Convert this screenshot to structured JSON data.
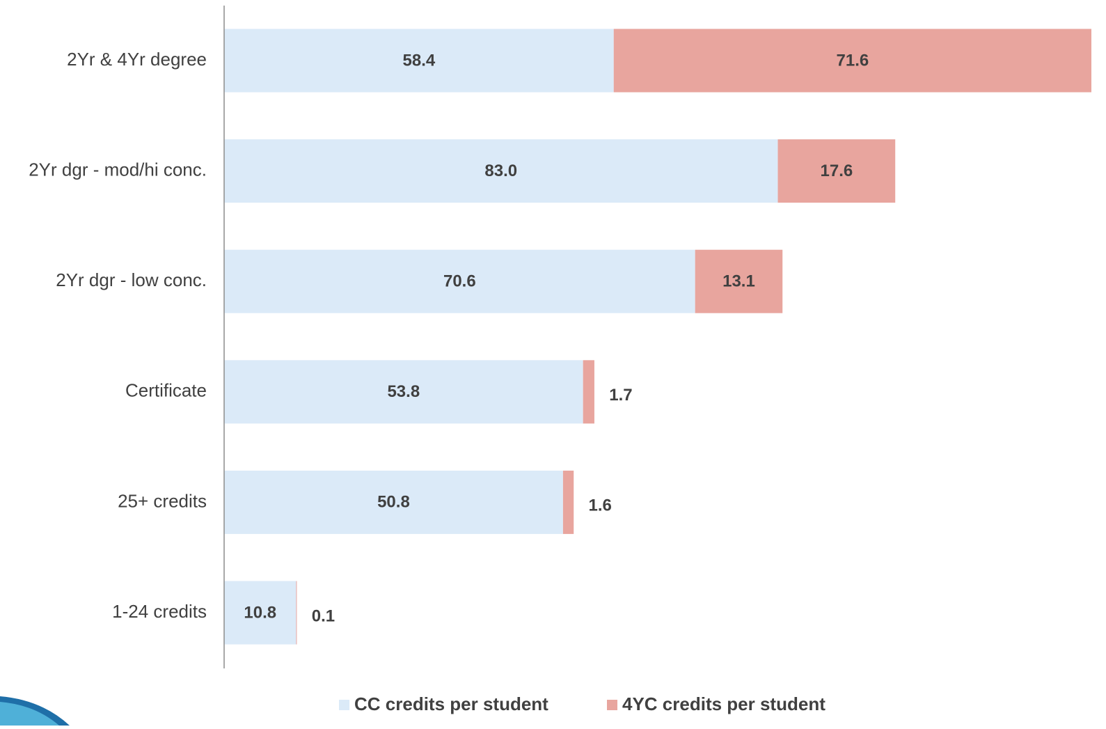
{
  "chart_data": {
    "type": "stacked-barh",
    "categories": [
      "2Yr & 4Yr degree",
      "2Yr dgr - mod/hi conc.",
      "2Yr dgr - low conc.",
      "Certificate",
      "25+ credits",
      "1-24 credits"
    ],
    "series": [
      {
        "name": "CC credits per student",
        "color": "#dbeaf8",
        "values": [
          58.4,
          83.0,
          70.6,
          53.8,
          50.8,
          10.8
        ],
        "value_labels": [
          "58.4",
          "83.0",
          "70.6",
          "53.8",
          "50.8",
          "10.8"
        ]
      },
      {
        "name": "4YC credits per student",
        "color": "#e8a59e",
        "values": [
          71.6,
          17.6,
          13.1,
          1.7,
          1.6,
          0.1
        ]
      }
    ],
    "xlim": [
      0,
      130
    ],
    "legend": "bottom"
  }
}
